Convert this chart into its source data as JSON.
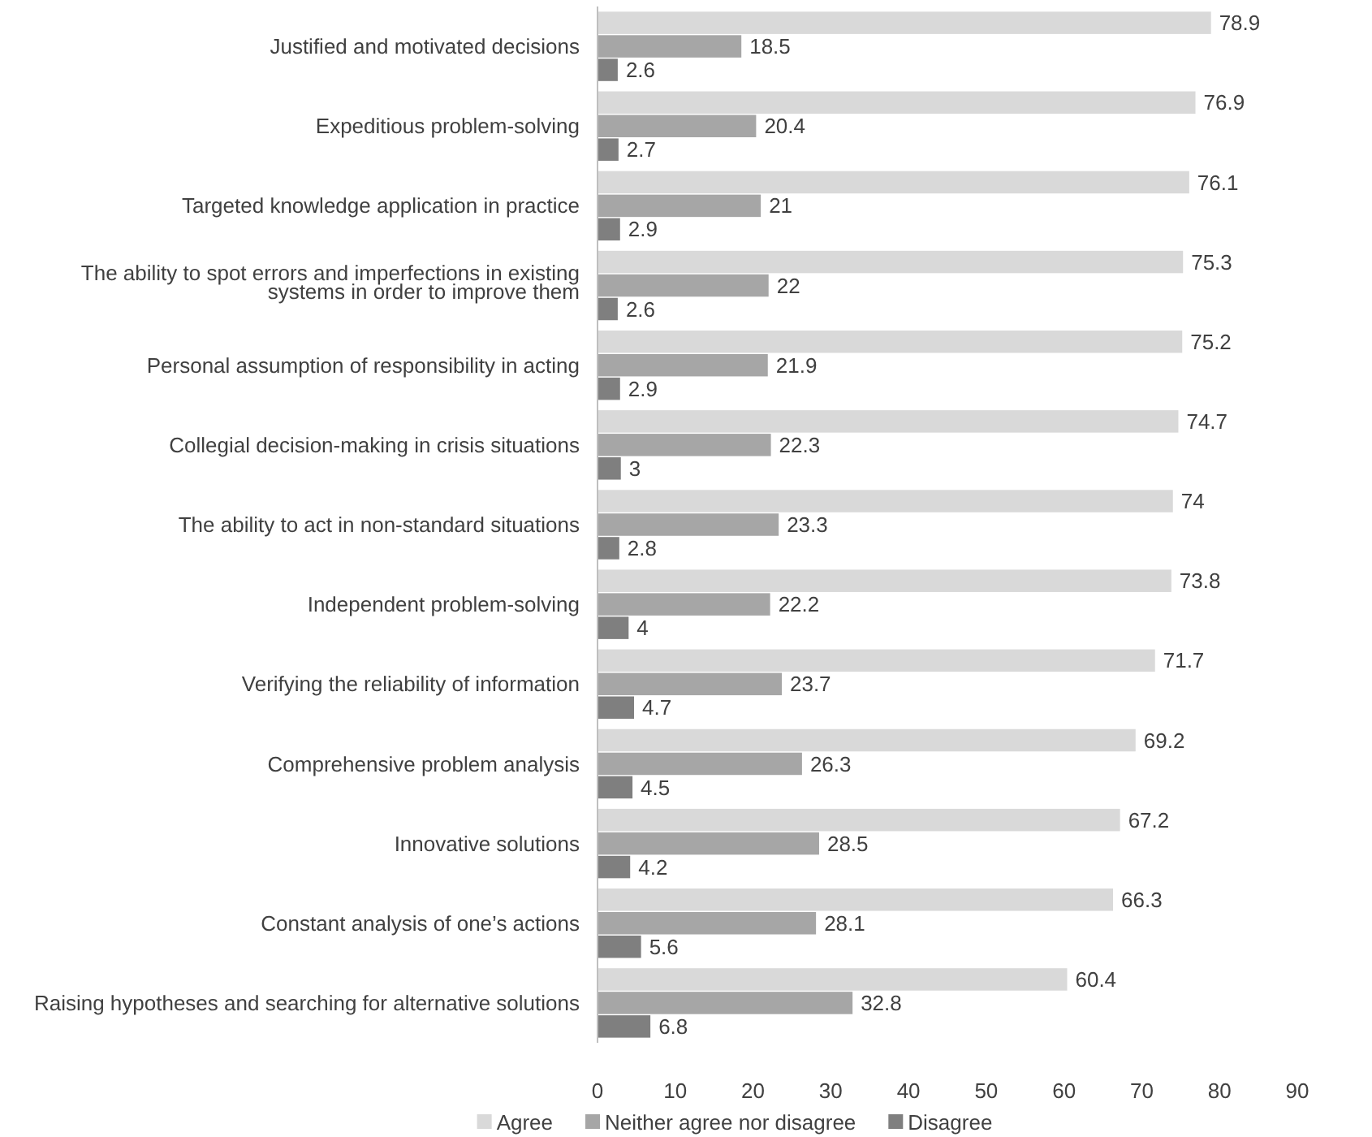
{
  "chart_data": {
    "type": "bar",
    "orientation": "horizontal",
    "categories": [
      "Justified and motivated decisions",
      "Expeditious problem-solving",
      "Targeted knowledge application in practice",
      "The ability to spot errors and imperfections in existing systems in order to improve them",
      "Personal assumption of responsibility in acting",
      "Collegial decision-making in crisis situations",
      "The ability to act in non-standard situations",
      "Independent problem-solving",
      "Verifying the reliability of information",
      "Comprehensive problem analysis",
      "Innovative solutions",
      "Constant analysis of one’s actions",
      "Raising hypotheses and searching for alternative solutions"
    ],
    "series": [
      {
        "name": "Agree",
        "color": "#d9d9d9",
        "values": [
          78.9,
          76.9,
          76.1,
          75.3,
          75.2,
          74.7,
          74,
          73.8,
          71.7,
          69.2,
          67.2,
          66.3,
          60.4
        ]
      },
      {
        "name": "Neither agree nor disagree",
        "color": "#a6a6a6",
        "values": [
          18.5,
          20.4,
          21,
          22,
          21.9,
          22.3,
          23.3,
          22.2,
          23.7,
          26.3,
          28.5,
          28.1,
          32.8
        ]
      },
      {
        "name": "Disagree",
        "color": "#7f7f7f",
        "values": [
          2.6,
          2.7,
          2.9,
          2.6,
          2.9,
          3,
          2.8,
          4,
          4.7,
          4.5,
          4.2,
          5.6,
          6.8
        ]
      }
    ],
    "xlim": [
      0,
      90
    ],
    "xticks": [
      0,
      10,
      20,
      30,
      40,
      50,
      60,
      70,
      80,
      90
    ],
    "data_labels": true,
    "grid": false,
    "legend": "bottom"
  }
}
